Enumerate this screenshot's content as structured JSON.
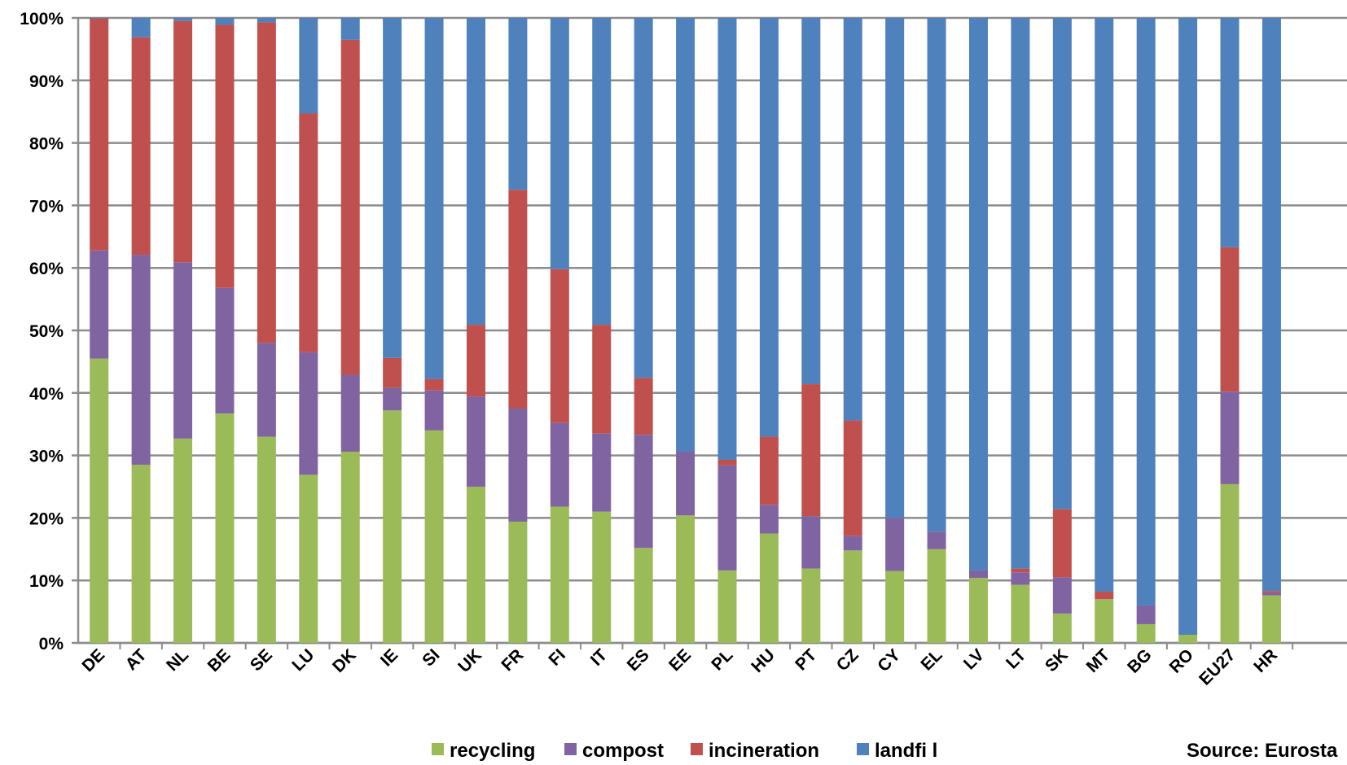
{
  "chart_data": {
    "type": "bar",
    "stacked": true,
    "percent": true,
    "categories": [
      "DE",
      "AT",
      "NL",
      "BE",
      "SE",
      "LU",
      "DK",
      "IE",
      "SI",
      "UK",
      "FR",
      "FI",
      "IT",
      "ES",
      "EE",
      "PL",
      "HU",
      "PT",
      "CZ",
      "CY",
      "EL",
      "LV",
      "LT",
      "SK",
      "MT",
      "BG",
      "RO",
      "EU27",
      "HR"
    ],
    "series": [
      {
        "name": "recycling",
        "color": "#9BBB59",
        "values": [
          45.5,
          28.5,
          32.7,
          36.7,
          33.0,
          26.9,
          30.6,
          37.2,
          34.0,
          25.0,
          19.4,
          21.8,
          21.0,
          15.2,
          20.4,
          11.6,
          17.5,
          11.9,
          14.8,
          11.5,
          15.0,
          10.4,
          9.3,
          4.7,
          7.0,
          3.0,
          1.3,
          25.4,
          7.6
        ]
      },
      {
        "name": "compost",
        "color": "#8064A2",
        "values": [
          17.3,
          33.6,
          28.2,
          20.1,
          15.0,
          19.6,
          12.3,
          3.6,
          6.4,
          14.4,
          18.1,
          13.4,
          12.5,
          18.1,
          10.2,
          16.8,
          4.6,
          8.4,
          2.3,
          8.5,
          2.8,
          1.2,
          2.0,
          5.8,
          0.0,
          3.0,
          0.0,
          14.8,
          0.4
        ]
      },
      {
        "name": "incineration",
        "color": "#C0504D",
        "values": [
          37.1,
          34.8,
          38.6,
          42.1,
          51.3,
          38.2,
          53.6,
          4.8,
          1.8,
          11.5,
          35.0,
          24.6,
          17.4,
          9.1,
          0.0,
          0.9,
          10.9,
          21.1,
          18.5,
          0.0,
          0.0,
          0.0,
          0.6,
          10.9,
          1.2,
          0.0,
          0.0,
          23.1,
          0.3
        ]
      },
      {
        "name": "landfill",
        "color": "#4F81BD",
        "values": [
          0.1,
          3.1,
          0.5,
          1.1,
          0.7,
          15.3,
          3.5,
          54.4,
          57.8,
          49.1,
          27.5,
          40.2,
          49.1,
          57.6,
          69.4,
          70.7,
          67.0,
          58.6,
          64.4,
          80.0,
          82.2,
          88.4,
          88.1,
          78.6,
          91.8,
          94.0,
          98.7,
          36.7,
          91.7
        ]
      }
    ],
    "ylim": [
      0,
      100
    ],
    "yticks": [
      "0%",
      "10%",
      "20%",
      "30%",
      "40%",
      "50%",
      "60%",
      "70%",
      "80%",
      "90%",
      "100%"
    ],
    "grid": true,
    "legend_position": "bottom-center",
    "legend": [
      "recycling",
      "compost",
      "incineration",
      "landfi l"
    ],
    "source": "Source: Eurosta"
  }
}
